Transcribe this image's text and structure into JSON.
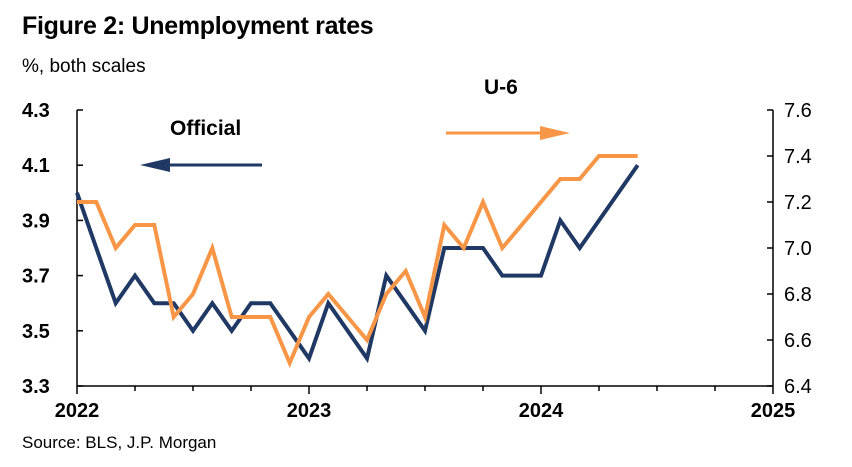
{
  "figure": {
    "title": "Figure 2: Unemployment rates",
    "subtitle": "%, both scales",
    "source": "Source: BLS, J.P. Morgan"
  },
  "chart_data": {
    "type": "line",
    "title": "Figure 2: Unemployment rates",
    "subtitle": "%, both scales",
    "x_tick_labels": [
      "2022",
      "2023",
      "2024",
      "2025"
    ],
    "xlim": [
      "2022-01",
      "2025-01"
    ],
    "left_axis": {
      "ylim": [
        3.3,
        4.3
      ],
      "ticks": [
        3.3,
        3.5,
        3.7,
        3.9,
        4.1,
        4.3
      ],
      "tick_labels": [
        "3.3",
        "3.5",
        "3.7",
        "3.9",
        "4.1",
        "4.3"
      ]
    },
    "right_axis": {
      "ylim": [
        6.4,
        7.6
      ],
      "ticks": [
        6.4,
        6.6,
        6.8,
        7.0,
        7.2,
        7.4,
        7.6
      ],
      "tick_labels": [
        "6.4",
        "6.6",
        "6.8",
        "7.0",
        "7.2",
        "7.4",
        "7.6"
      ]
    },
    "grid": false,
    "series": [
      {
        "name": "Official",
        "axis": "left",
        "color": "#1f3864",
        "points": [
          [
            "2022-01",
            4.0
          ],
          [
            "2022-02",
            3.8
          ],
          [
            "2022-03",
            3.6
          ],
          [
            "2022-04",
            3.7
          ],
          [
            "2022-05",
            3.6
          ],
          [
            "2022-06",
            3.6
          ],
          [
            "2022-07",
            3.5
          ],
          [
            "2022-08",
            3.6
          ],
          [
            "2022-09",
            3.5
          ],
          [
            "2022-10",
            3.6
          ],
          [
            "2022-11",
            3.6
          ],
          [
            "2022-12",
            3.5
          ],
          [
            "2023-01",
            3.4
          ],
          [
            "2023-02",
            3.6
          ],
          [
            "2023-03",
            3.5
          ],
          [
            "2023-04",
            3.4
          ],
          [
            "2023-05",
            3.7
          ],
          [
            "2023-06",
            3.6
          ],
          [
            "2023-07",
            3.5
          ],
          [
            "2023-08",
            3.8
          ],
          [
            "2023-09",
            3.8
          ],
          [
            "2023-10",
            3.8
          ],
          [
            "2023-11",
            3.7
          ],
          [
            "2023-12",
            3.7
          ],
          [
            "2024-01",
            3.7
          ],
          [
            "2024-02",
            3.9
          ],
          [
            "2024-03",
            3.8
          ],
          [
            "2024-06",
            4.1
          ]
        ]
      },
      {
        "name": "U-6",
        "axis": "right",
        "color": "#f79646",
        "points": [
          [
            "2022-01",
            7.2
          ],
          [
            "2022-02",
            7.2
          ],
          [
            "2022-03",
            7.0
          ],
          [
            "2022-04",
            7.1
          ],
          [
            "2022-05",
            7.1
          ],
          [
            "2022-06",
            6.7
          ],
          [
            "2022-07",
            6.8
          ],
          [
            "2022-08",
            7.0
          ],
          [
            "2022-09",
            6.7
          ],
          [
            "2022-10",
            6.7
          ],
          [
            "2022-11",
            6.7
          ],
          [
            "2022-12",
            6.5
          ],
          [
            "2023-01",
            6.7
          ],
          [
            "2023-02",
            6.8
          ],
          [
            "2023-03",
            6.7
          ],
          [
            "2023-04",
            6.6
          ],
          [
            "2023-05",
            6.8
          ],
          [
            "2023-06",
            6.9
          ],
          [
            "2023-07",
            6.7
          ],
          [
            "2023-08",
            7.1
          ],
          [
            "2023-09",
            7.0
          ],
          [
            "2023-10",
            7.2
          ],
          [
            "2023-11",
            7.0
          ],
          [
            "2024-02",
            7.3
          ],
          [
            "2024-03",
            7.3
          ],
          [
            "2024-04",
            7.4
          ],
          [
            "2024-05",
            7.4
          ],
          [
            "2024-06",
            7.4
          ]
        ]
      }
    ],
    "annotations": [
      {
        "text": "Official",
        "arrow": "left",
        "color": "#1f3864"
      },
      {
        "text": "U-6",
        "arrow": "right",
        "color": "#f79646"
      }
    ]
  }
}
